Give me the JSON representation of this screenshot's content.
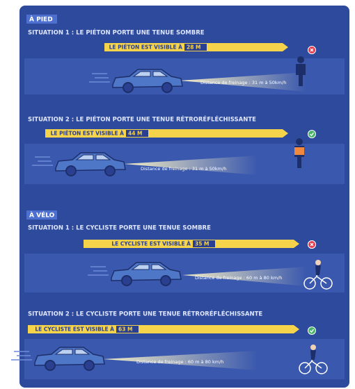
{
  "sections": [
    {
      "label": "À PIED",
      "situations": [
        {
          "title": "SITUATION 1 : LE PIÉTON PORTE UNE TENUE SOMBRE",
          "visibility_text": "LE PIÉTON EST VISIBLE À",
          "distance": "28 M",
          "braking": "Distance de freinage : 31 m à 50km/h"
        },
        {
          "title": "SITUATION 2 : LE PIÉTON PORTE UNE TENUE RÉTRORÉFLÉCHISSANTE",
          "visibility_text": "LE PIÉTON EST VISIBLE À",
          "distance": "44 M",
          "braking": "Distance de freinage : 31 m à 50km/h"
        }
      ]
    },
    {
      "label": "À VÉLO",
      "situations": [
        {
          "title": "SITUATION 1 : LE CYCLISTE PORTE UNE TENUE SOMBRE",
          "visibility_text": "LE CYCLISTE EST VISIBLE À",
          "distance": "35 M",
          "braking": "Distance de freinage : 60 m à 80 km/h"
        },
        {
          "title": "SITUATION 2 : LE CYCLISTE PORTE UNE TENUE RÉTRORÉFLÉCHISSANTE",
          "visibility_text": "LE CYCLISTE EST VISIBLE À",
          "distance": "63 M",
          "braking": "Distance de freinage : 60 m à 80 km/h"
        }
      ]
    }
  ]
}
